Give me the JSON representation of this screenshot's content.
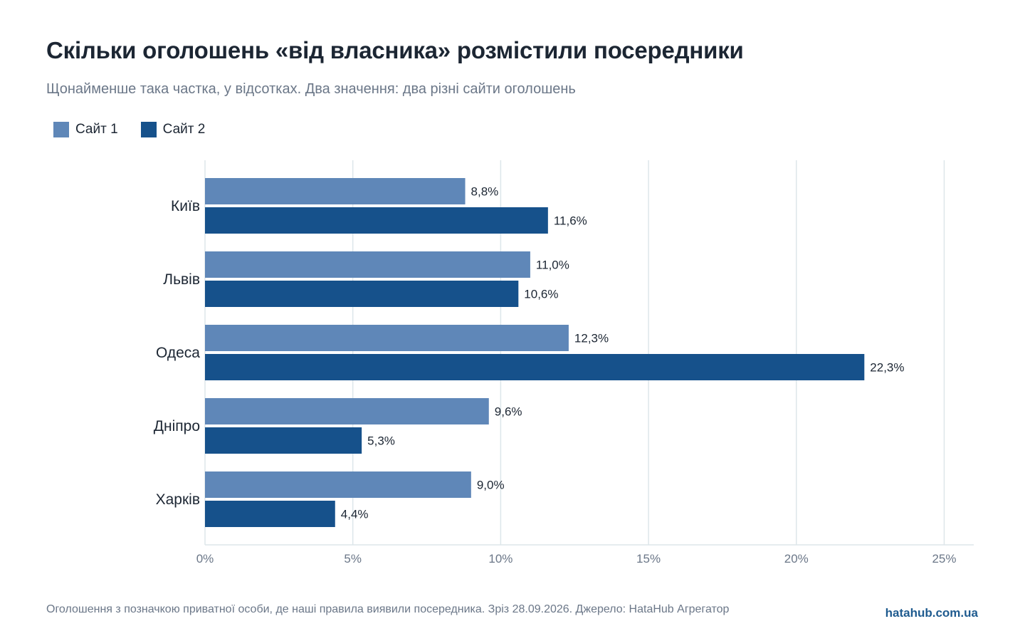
{
  "header": {
    "title": "Скільки оголошень «від власника» розмістили посередники",
    "subtitle": "Щонайменше така частка, у відсотках. Два значення: два різні сайти оголошень"
  },
  "legend": [
    {
      "label": "Сайт 1",
      "color": "#5f87b8"
    },
    {
      "label": "Сайт 2",
      "color": "#16518b"
    }
  ],
  "chart_data": {
    "type": "bar",
    "orientation": "horizontal",
    "categories": [
      "Київ",
      "Львів",
      "Одеса",
      "Дніпро",
      "Харків"
    ],
    "series": [
      {
        "name": "Сайт 1",
        "color": "#5f87b8",
        "values": [
          8.8,
          11.0,
          12.3,
          9.6,
          9.0
        ],
        "labels": [
          "8,8%",
          "11,0%",
          "12,3%",
          "9,6%",
          "9,0%"
        ]
      },
      {
        "name": "Сайт 2",
        "color": "#16518b",
        "values": [
          11.6,
          10.6,
          22.3,
          5.3,
          4.4
        ],
        "labels": [
          "11,6%",
          "10,6%",
          "22,3%",
          "5,3%",
          "4,4%"
        ]
      }
    ],
    "xlim": [
      0,
      26
    ],
    "xticks": [
      0,
      5,
      10,
      15,
      20,
      25
    ],
    "xtick_labels": [
      "0%",
      "5%",
      "10%",
      "15%",
      "20%",
      "25%"
    ],
    "grid": "vertical"
  },
  "footer": {
    "note": "Оголошення з позначкою приватної особи, де наші правила виявили посередника. Зріз 28.09.2026. Джерело: HataHub Агрегатор",
    "brand": "hatahub.com.ua"
  }
}
